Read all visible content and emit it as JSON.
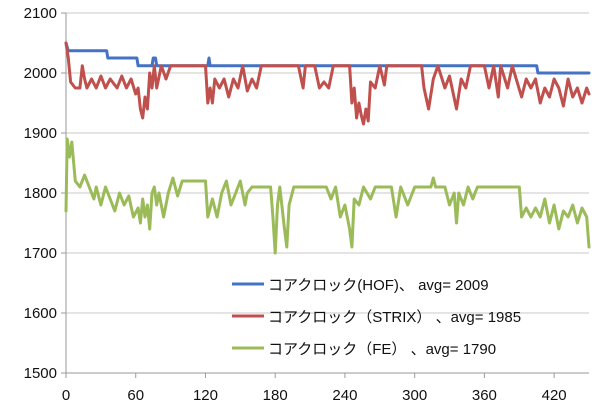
{
  "chart_data": {
    "type": "line",
    "title": "",
    "xlabel": "",
    "ylabel": "",
    "xlim": [
      0,
      450
    ],
    "ylim": [
      1500,
      2100
    ],
    "x_ticks": [
      0,
      60,
      120,
      180,
      240,
      300,
      360,
      420
    ],
    "y_ticks": [
      1500,
      1600,
      1700,
      1800,
      1900,
      2000,
      2100
    ],
    "grid": true,
    "legend_position": "bottom-right",
    "series": [
      {
        "name": "コアクロック(HOF)、 avg= 2009",
        "color": "#4472C4",
        "points": [
          [
            0,
            2050
          ],
          [
            2,
            2037
          ],
          [
            35,
            2037
          ],
          [
            36,
            2025
          ],
          [
            61,
            2025
          ],
          [
            62,
            2012
          ],
          [
            74,
            2012
          ],
          [
            75,
            2025
          ],
          [
            77,
            2025
          ],
          [
            78,
            2012
          ],
          [
            122,
            2012
          ],
          [
            123,
            2025
          ],
          [
            124,
            2012
          ],
          [
            405,
            2012
          ],
          [
            406,
            2000
          ],
          [
            450,
            2000
          ]
        ]
      },
      {
        "name": "コアクロック（STRIX） 、avg= 1985",
        "color": "#C0504D",
        "points": [
          [
            0,
            2050
          ],
          [
            2,
            2025
          ],
          [
            4,
            1985
          ],
          [
            8,
            1975
          ],
          [
            12,
            1975
          ],
          [
            14,
            2012
          ],
          [
            16,
            1990
          ],
          [
            18,
            1975
          ],
          [
            22,
            1990
          ],
          [
            26,
            1975
          ],
          [
            30,
            1995
          ],
          [
            34,
            1975
          ],
          [
            38,
            1990
          ],
          [
            44,
            1975
          ],
          [
            48,
            1995
          ],
          [
            52,
            1975
          ],
          [
            56,
            1990
          ],
          [
            60,
            1965
          ],
          [
            62,
            1975
          ],
          [
            64,
            1940
          ],
          [
            66,
            1925
          ],
          [
            68,
            1960
          ],
          [
            70,
            1940
          ],
          [
            72,
            2000
          ],
          [
            74,
            1975
          ],
          [
            76,
            2012
          ],
          [
            78,
            1975
          ],
          [
            82,
            2012
          ],
          [
            86,
            1990
          ],
          [
            90,
            2012
          ],
          [
            120,
            2012
          ],
          [
            122,
            1950
          ],
          [
            124,
            1975
          ],
          [
            126,
            1950
          ],
          [
            128,
            1990
          ],
          [
            132,
            1975
          ],
          [
            136,
            1990
          ],
          [
            140,
            1960
          ],
          [
            144,
            1990
          ],
          [
            148,
            1975
          ],
          [
            152,
            2012
          ],
          [
            156,
            1970
          ],
          [
            160,
            1990
          ],
          [
            164,
            1975
          ],
          [
            168,
            2012
          ],
          [
            200,
            2012
          ],
          [
            204,
            1975
          ],
          [
            206,
            2012
          ],
          [
            214,
            2012
          ],
          [
            218,
            1975
          ],
          [
            222,
            1985
          ],
          [
            226,
            1975
          ],
          [
            230,
            2012
          ],
          [
            244,
            2012
          ],
          [
            246,
            1950
          ],
          [
            248,
            1975
          ],
          [
            250,
            1925
          ],
          [
            252,
            1950
          ],
          [
            254,
            1930
          ],
          [
            256,
            1915
          ],
          [
            258,
            1940
          ],
          [
            260,
            1920
          ],
          [
            262,
            1985
          ],
          [
            266,
            1975
          ],
          [
            270,
            2012
          ],
          [
            274,
            1980
          ],
          [
            276,
            2012
          ],
          [
            306,
            2012
          ],
          [
            308,
            1975
          ],
          [
            312,
            1940
          ],
          [
            316,
            1990
          ],
          [
            320,
            2012
          ],
          [
            326,
            1975
          ],
          [
            330,
            1995
          ],
          [
            336,
            1940
          ],
          [
            340,
            1990
          ],
          [
            344,
            1975
          ],
          [
            348,
            2012
          ],
          [
            360,
            2012
          ],
          [
            364,
            1975
          ],
          [
            368,
            2012
          ],
          [
            372,
            1960
          ],
          [
            374,
            2012
          ],
          [
            380,
            1975
          ],
          [
            384,
            2012
          ],
          [
            392,
            1960
          ],
          [
            396,
            1990
          ],
          [
            400,
            1975
          ],
          [
            404,
            1990
          ],
          [
            408,
            1950
          ],
          [
            412,
            1975
          ],
          [
            416,
            1960
          ],
          [
            420,
            1990
          ],
          [
            424,
            1975
          ],
          [
            428,
            1945
          ],
          [
            432,
            1990
          ],
          [
            436,
            1960
          ],
          [
            440,
            1975
          ],
          [
            444,
            1950
          ],
          [
            448,
            1975
          ],
          [
            450,
            1965
          ]
        ]
      },
      {
        "name": "コアクロック（FE） 、avg= 1790",
        "color": "#9BBB59",
        "points": [
          [
            0,
            1770
          ],
          [
            1,
            1890
          ],
          [
            3,
            1860
          ],
          [
            5,
            1885
          ],
          [
            8,
            1820
          ],
          [
            12,
            1810
          ],
          [
            16,
            1830
          ],
          [
            20,
            1810
          ],
          [
            24,
            1790
          ],
          [
            26,
            1810
          ],
          [
            30,
            1780
          ],
          [
            34,
            1810
          ],
          [
            38,
            1790
          ],
          [
            42,
            1770
          ],
          [
            46,
            1800
          ],
          [
            50,
            1780
          ],
          [
            54,
            1795
          ],
          [
            58,
            1760
          ],
          [
            62,
            1775
          ],
          [
            64,
            1750
          ],
          [
            66,
            1790
          ],
          [
            68,
            1760
          ],
          [
            70,
            1780
          ],
          [
            72,
            1740
          ],
          [
            74,
            1800
          ],
          [
            76,
            1810
          ],
          [
            78,
            1780
          ],
          [
            80,
            1800
          ],
          [
            84,
            1760
          ],
          [
            88,
            1800
          ],
          [
            92,
            1825
          ],
          [
            96,
            1795
          ],
          [
            100,
            1820
          ],
          [
            120,
            1820
          ],
          [
            122,
            1760
          ],
          [
            126,
            1790
          ],
          [
            130,
            1760
          ],
          [
            134,
            1800
          ],
          [
            138,
            1820
          ],
          [
            142,
            1780
          ],
          [
            146,
            1800
          ],
          [
            150,
            1820
          ],
          [
            154,
            1780
          ],
          [
            156,
            1800
          ],
          [
            160,
            1810
          ],
          [
            176,
            1810
          ],
          [
            178,
            1760
          ],
          [
            180,
            1700
          ],
          [
            182,
            1780
          ],
          [
            184,
            1810
          ],
          [
            188,
            1740
          ],
          [
            190,
            1710
          ],
          [
            192,
            1780
          ],
          [
            196,
            1810
          ],
          [
            224,
            1810
          ],
          [
            228,
            1790
          ],
          [
            232,
            1810
          ],
          [
            236,
            1760
          ],
          [
            240,
            1780
          ],
          [
            244,
            1740
          ],
          [
            246,
            1710
          ],
          [
            248,
            1790
          ],
          [
            252,
            1780
          ],
          [
            256,
            1810
          ],
          [
            262,
            1790
          ],
          [
            266,
            1810
          ],
          [
            280,
            1810
          ],
          [
            284,
            1760
          ],
          [
            288,
            1810
          ],
          [
            294,
            1780
          ],
          [
            300,
            1810
          ],
          [
            314,
            1810
          ],
          [
            316,
            1825
          ],
          [
            318,
            1810
          ],
          [
            326,
            1810
          ],
          [
            330,
            1780
          ],
          [
            334,
            1800
          ],
          [
            336,
            1750
          ],
          [
            338,
            1800
          ],
          [
            342,
            1780
          ],
          [
            346,
            1810
          ],
          [
            350,
            1790
          ],
          [
            354,
            1810
          ],
          [
            390,
            1810
          ],
          [
            392,
            1760
          ],
          [
            396,
            1775
          ],
          [
            400,
            1760
          ],
          [
            404,
            1775
          ],
          [
            408,
            1760
          ],
          [
            412,
            1790
          ],
          [
            416,
            1750
          ],
          [
            420,
            1780
          ],
          [
            424,
            1740
          ],
          [
            428,
            1770
          ],
          [
            432,
            1760
          ],
          [
            436,
            1780
          ],
          [
            440,
            1750
          ],
          [
            444,
            1775
          ],
          [
            448,
            1760
          ],
          [
            450,
            1710
          ]
        ]
      }
    ]
  }
}
